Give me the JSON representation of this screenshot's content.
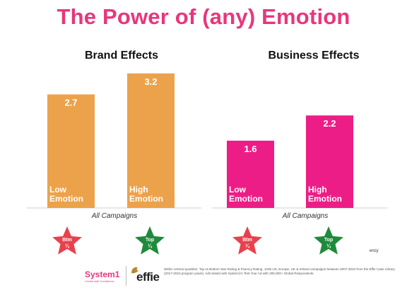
{
  "title": "The Power of (any) Emotion",
  "panels": [
    {
      "title": "Brand Effects",
      "caption": "All Campaigns",
      "stars": [
        {
          "label": "Btm",
          "sub": "¼",
          "color": "#e8414e"
        },
        {
          "label": "Top",
          "sub": "¼",
          "color": "#1f8a3c"
        }
      ]
    },
    {
      "title": "Business Effects",
      "caption": "All Campaigns",
      "stars": [
        {
          "label": "Btm",
          "sub": "¼",
          "color": "#e8414e"
        },
        {
          "label": "Top",
          "sub": "¼",
          "color": "#1f8a3c"
        }
      ]
    }
  ],
  "chart_data": [
    {
      "type": "bar",
      "title": "Brand Effects",
      "categories": [
        "Low Emotion",
        "High Emotion"
      ],
      "category_lines": [
        [
          "Low",
          "Emotion"
        ],
        [
          "High",
          "Emotion"
        ]
      ],
      "values": [
        2.7,
        3.2
      ],
      "value_labels": [
        "2.7",
        "3.2"
      ],
      "ylim": [
        0,
        3.6
      ],
      "color": "#eca24a",
      "xlabel": "All Campaigns",
      "grid": false
    },
    {
      "type": "bar",
      "title": "Business Effects",
      "categories": [
        "Low Emotion",
        "High Emotion"
      ],
      "category_lines": [
        [
          "Low",
          "Emotion"
        ],
        [
          "High",
          "Emotion"
        ]
      ],
      "values": [
        1.6,
        2.2
      ],
      "value_labels": [
        "1.6",
        "2.2"
      ],
      "ylim": [
        0,
        3.6
      ],
      "color": "#ec1d86",
      "xlabel": "All Campaigns",
      "grid": false
    }
  ],
  "footer": {
    "brand_a": "System1",
    "brand_a_tagline": "Create with Confidence",
    "brand_b": "effie",
    "note": "Within vertical quartiles: Top vs Bottom Star Rating & Fluency Rating. 1205 US, Europe, UK & Ireland campaigns between 2007-2023 from the Effie Case Library (2017-2023 program years). Ads tested with System1's Test Your Ad with 300,000+ Global Respondents.",
    "watermark": "ency"
  }
}
